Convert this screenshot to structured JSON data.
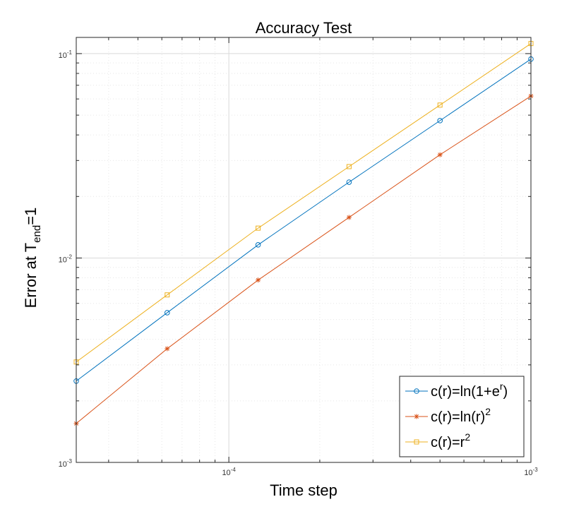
{
  "chart_data": {
    "type": "line",
    "title": "Accuracy Test",
    "xlabel": "Time step",
    "ylabel": {
      "main": "Error at T",
      "subscript": "end",
      "suffix": "=1"
    },
    "xscale": "log",
    "yscale": "log",
    "xlim": [
      3.125e-05,
      0.001
    ],
    "ylim": [
      0.001,
      0.12
    ],
    "grid": true,
    "minor_grid": true,
    "legend_location": "bottom-right",
    "x_ticks": [
      {
        "base": "10",
        "exp": "-4"
      },
      {
        "base": "10",
        "exp": "-3"
      }
    ],
    "y_ticks": [
      {
        "base": "10",
        "exp": "-3"
      },
      {
        "base": "10",
        "exp": "-2"
      },
      {
        "base": "10",
        "exp": "-1"
      }
    ],
    "x": [
      3.125e-05,
      6.25e-05,
      0.000125,
      0.00025,
      0.0005,
      0.001
    ],
    "series": [
      {
        "name": "c(r)=ln(1+e^r)",
        "legend": {
          "main": "c(r)=ln(1+e",
          "sup": "r",
          "tail": ")"
        },
        "color": "#0072BD",
        "marker": "circle",
        "values": [
          0.0025,
          0.0054,
          0.0116,
          0.0235,
          0.047,
          0.094
        ]
      },
      {
        "name": "c(r)=ln(r)^2",
        "legend": {
          "main": "c(r)=ln(r)",
          "sup": "2",
          "tail": ""
        },
        "color": "#D95319",
        "marker": "asterisk",
        "values": [
          0.00155,
          0.0036,
          0.0078,
          0.0158,
          0.032,
          0.062
        ]
      },
      {
        "name": "c(r)=r^2",
        "legend": {
          "main": "c(r)=r",
          "sup": "2",
          "tail": ""
        },
        "color": "#EDB120",
        "marker": "square",
        "values": [
          0.0031,
          0.0066,
          0.014,
          0.028,
          0.056,
          0.112
        ]
      }
    ]
  }
}
